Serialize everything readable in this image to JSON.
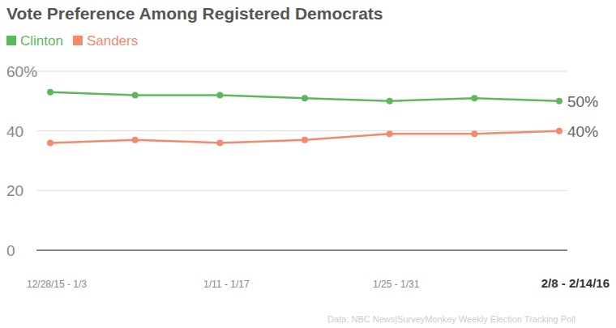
{
  "chart_data": {
    "type": "line",
    "title": "Vote Preference Among Registered Democrats",
    "categories": [
      "12/28/15 - 1/3",
      null,
      "1/11 - 1/17",
      null,
      "1/25 - 1/31",
      null,
      "2/8 - 2/14/16"
    ],
    "series": [
      {
        "name": "Clinton",
        "color": "#5cb85c",
        "values": [
          53,
          52,
          52,
          51,
          50,
          51,
          50
        ],
        "marker": "circle"
      },
      {
        "name": "Sanders",
        "color": "#f4896b",
        "values": [
          36,
          37,
          36,
          37,
          39,
          39,
          40
        ],
        "marker": "circle"
      }
    ],
    "annotations": [
      "50%",
      "40%"
    ],
    "source": "Data: NBC News|SurveyMonkey Weekly Election Tracking Poll",
    "ylim": [
      0,
      60
    ],
    "yticks": [
      0,
      20,
      40,
      {
        "value": 60,
        "label": "60%"
      }
    ],
    "grid": true,
    "legend": "top-left"
  }
}
